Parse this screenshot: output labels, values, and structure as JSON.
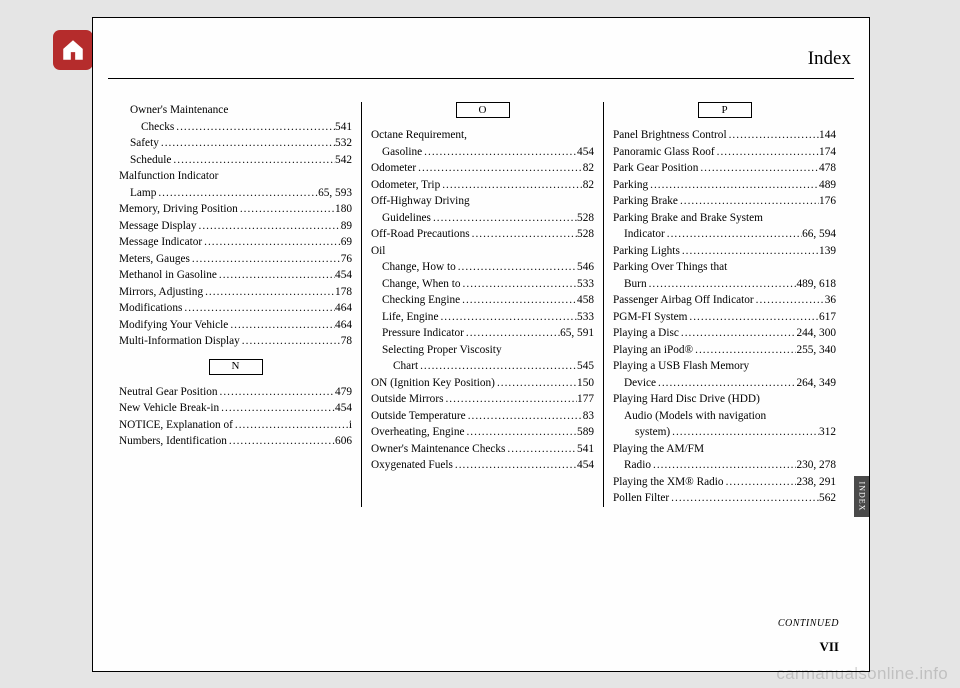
{
  "header": {
    "title": "Index"
  },
  "continued": "CONTINUED",
  "page_number": "VII",
  "watermark": "carmanualsonline.info",
  "side_tab": "INDEX",
  "columns": [
    {
      "entries": [
        {
          "label": "Owner's Maintenance",
          "indent": 1,
          "nowrap_page": null
        },
        {
          "label": "Checks",
          "indent": 2,
          "page": "541"
        },
        {
          "label": "Safety",
          "indent": 1,
          "page": "532"
        },
        {
          "label": "Schedule",
          "indent": 1,
          "page": "542"
        },
        {
          "label": "Malfunction Indicator",
          "indent": 0,
          "nowrap_page": null
        },
        {
          "label": "Lamp",
          "indent": 1,
          "page": "65, 593"
        },
        {
          "label": "Memory, Driving Position",
          "indent": 0,
          "page": "180"
        },
        {
          "label": "Message Display",
          "indent": 0,
          "page": "89"
        },
        {
          "label": "Message Indicator",
          "indent": 0,
          "page": "69"
        },
        {
          "label": "Meters, Gauges",
          "indent": 0,
          "page": "76"
        },
        {
          "label": "Methanol in Gasoline",
          "indent": 0,
          "page": "454"
        },
        {
          "label": "Mirrors, Adjusting",
          "indent": 0,
          "page": "178"
        },
        {
          "label": "Modifications",
          "indent": 0,
          "page": "464"
        },
        {
          "label": "Modifying Your Vehicle",
          "indent": 0,
          "page": "464"
        },
        {
          "label": "Multi-Information Display",
          "indent": 0,
          "page": "78"
        }
      ],
      "letter": "N",
      "entries2": [
        {
          "label": "Neutral Gear Position",
          "indent": 0,
          "page": "479"
        },
        {
          "label": "New Vehicle Break-in",
          "indent": 0,
          "page": "454"
        },
        {
          "label": "NOTICE, Explanation of",
          "indent": 0,
          "page": "i"
        },
        {
          "label": "Numbers, Identification",
          "indent": 0,
          "page": "606"
        }
      ]
    },
    {
      "letter": "O",
      "entries": [
        {
          "label": "Octane Requirement,",
          "indent": 0,
          "nowrap_page": null
        },
        {
          "label": "Gasoline",
          "indent": 1,
          "page": "454"
        },
        {
          "label": "Odometer",
          "indent": 0,
          "page": "82"
        },
        {
          "label": "Odometer, Trip",
          "indent": 0,
          "page": "82"
        },
        {
          "label": "Off-Highway Driving",
          "indent": 0,
          "nowrap_page": null
        },
        {
          "label": "Guidelines",
          "indent": 1,
          "page": "528"
        },
        {
          "label": "Off-Road Precautions",
          "indent": 0,
          "page": "528"
        },
        {
          "label": "Oil",
          "indent": 0,
          "nowrap_page": null
        },
        {
          "label": "Change, How to",
          "indent": 1,
          "page": "546"
        },
        {
          "label": "Change, When to",
          "indent": 1,
          "page": "533"
        },
        {
          "label": "Checking Engine",
          "indent": 1,
          "page": "458"
        },
        {
          "label": "Life, Engine",
          "indent": 1,
          "page": "533"
        },
        {
          "label": "Pressure Indicator",
          "indent": 1,
          "page": "65, 591"
        },
        {
          "label": "Selecting Proper Viscosity",
          "indent": 1,
          "nowrap_page": null
        },
        {
          "label": "Chart",
          "indent": 2,
          "page": "545"
        },
        {
          "label": "ON (Ignition Key Position)",
          "indent": 0,
          "page": "150"
        },
        {
          "label": "Outside Mirrors",
          "indent": 0,
          "page": "177"
        },
        {
          "label": "Outside Temperature",
          "indent": 0,
          "page": "83"
        },
        {
          "label": "Overheating, Engine",
          "indent": 0,
          "page": "589"
        },
        {
          "label": "Owner's Maintenance Checks",
          "indent": 0,
          "page": "541"
        },
        {
          "label": "Oxygenated Fuels",
          "indent": 0,
          "page": "454"
        }
      ]
    },
    {
      "letter": "P",
      "entries": [
        {
          "label": "Panel Brightness Control",
          "indent": 0,
          "page": "144"
        },
        {
          "label": "Panoramic Glass Roof",
          "indent": 0,
          "page": "174"
        },
        {
          "label": "Park Gear Position",
          "indent": 0,
          "page": "478"
        },
        {
          "label": "Parking",
          "indent": 0,
          "page": "489"
        },
        {
          "label": "Parking Brake",
          "indent": 0,
          "page": "176"
        },
        {
          "label": "Parking Brake and Brake System",
          "indent": 0,
          "nowrap_page": null
        },
        {
          "label": "Indicator",
          "indent": 1,
          "page": "66, 594"
        },
        {
          "label": "Parking Lights",
          "indent": 0,
          "page": "139"
        },
        {
          "label": "Parking Over Things that",
          "indent": 0,
          "nowrap_page": null
        },
        {
          "label": "Burn",
          "indent": 1,
          "page": "489, 618"
        },
        {
          "label": "Passenger Airbag Off Indicator",
          "indent": 0,
          "page": "36"
        },
        {
          "label": "PGM-FI System",
          "indent": 0,
          "page": "617"
        },
        {
          "label": "Playing a Disc",
          "indent": 0,
          "page": "244, 300"
        },
        {
          "label": "Playing an iPod®",
          "indent": 0,
          "page": "255, 340"
        },
        {
          "label": "Playing a USB Flash Memory",
          "indent": 0,
          "nowrap_page": null
        },
        {
          "label": "Device",
          "indent": 1,
          "page": "264, 349"
        },
        {
          "label": "Playing Hard Disc Drive (HDD)",
          "indent": 0,
          "nowrap_page": null
        },
        {
          "label": "Audio (Models with navigation",
          "indent": 1,
          "nowrap_page": null
        },
        {
          "label": "system)",
          "indent": 2,
          "page": "312"
        },
        {
          "label": "Playing the AM/FM",
          "indent": 0,
          "nowrap_page": null
        },
        {
          "label": "Radio",
          "indent": 1,
          "page": "230, 278"
        },
        {
          "label": "Playing the XM® Radio",
          "indent": 0,
          "page": "238, 291"
        },
        {
          "label": "Pollen Filter",
          "indent": 0,
          "page": "562"
        }
      ]
    }
  ]
}
